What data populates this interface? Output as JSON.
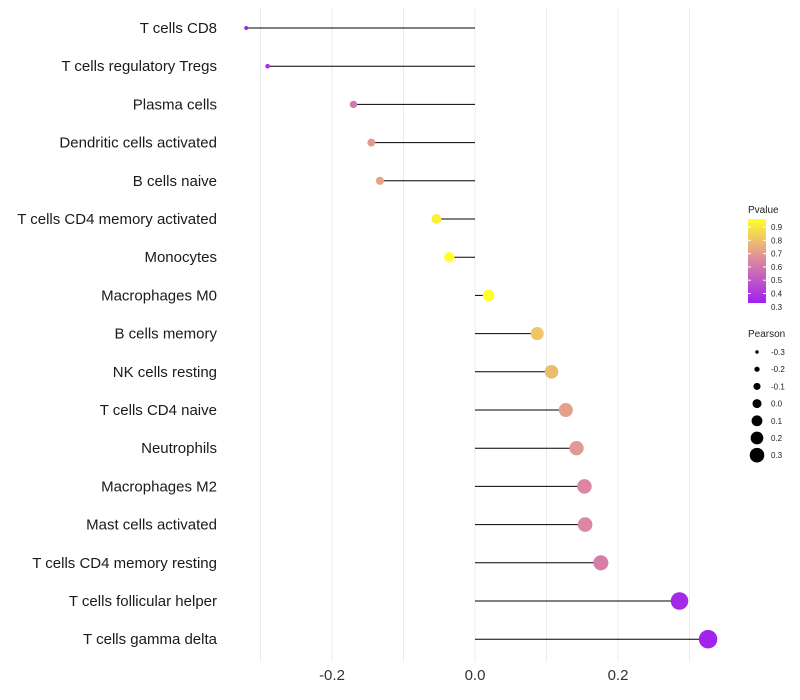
{
  "chart_data": {
    "type": "lollipop",
    "title": "",
    "xlabel": "",
    "ylabel": "",
    "xlim": [
      -0.32,
      0.34
    ],
    "x_ticks": [
      -0.2,
      0.0,
      0.2
    ],
    "x_tick_labels": [
      "-0.2",
      "0.0",
      "0.2"
    ],
    "grid": true,
    "categories": [
      "T cells CD8",
      "T cells regulatory  Tregs",
      "Plasma cells",
      "Dendritic cells activated",
      "B cells naive",
      "T cells CD4 memory activated",
      "Monocytes",
      "Macrophages M0",
      "B cells memory",
      "NK cells resting",
      "T cells CD4 naive",
      "Neutrophils",
      "Macrophages M2",
      "Mast cells activated",
      "T cells CD4 memory resting",
      "T cells follicular helper",
      "T cells gamma delta"
    ],
    "pearson": [
      -0.32,
      -0.29,
      -0.17,
      -0.145,
      -0.133,
      -0.054,
      -0.036,
      0.019,
      0.087,
      0.107,
      0.127,
      0.142,
      0.153,
      0.154,
      0.176,
      0.286,
      0.326
    ],
    "pvalue": [
      0.31,
      0.36,
      0.58,
      0.68,
      0.71,
      0.91,
      0.96,
      0.96,
      0.8,
      0.77,
      0.7,
      0.68,
      0.63,
      0.63,
      0.6,
      0.33,
      0.31
    ],
    "legend_color": {
      "title": "Pvalue",
      "ticks": [
        "0.9",
        "0.8",
        "0.7",
        "0.6",
        "0.5",
        "0.4",
        "0.3"
      ],
      "min": 0.3,
      "max": 0.95,
      "color_low": "#a020f0",
      "color_mid": "#e0909b",
      "color_high": "#ffff2a"
    },
    "legend_size": {
      "title": "Pearson",
      "ticks": [
        "-0.3",
        "-0.2",
        "-0.1",
        "0.0",
        "0.1",
        "0.2",
        "0.3"
      ],
      "values": [
        -0.3,
        -0.2,
        -0.1,
        0.0,
        0.1,
        0.2,
        0.3
      ],
      "color": "#000000"
    },
    "legend_position": "right"
  }
}
